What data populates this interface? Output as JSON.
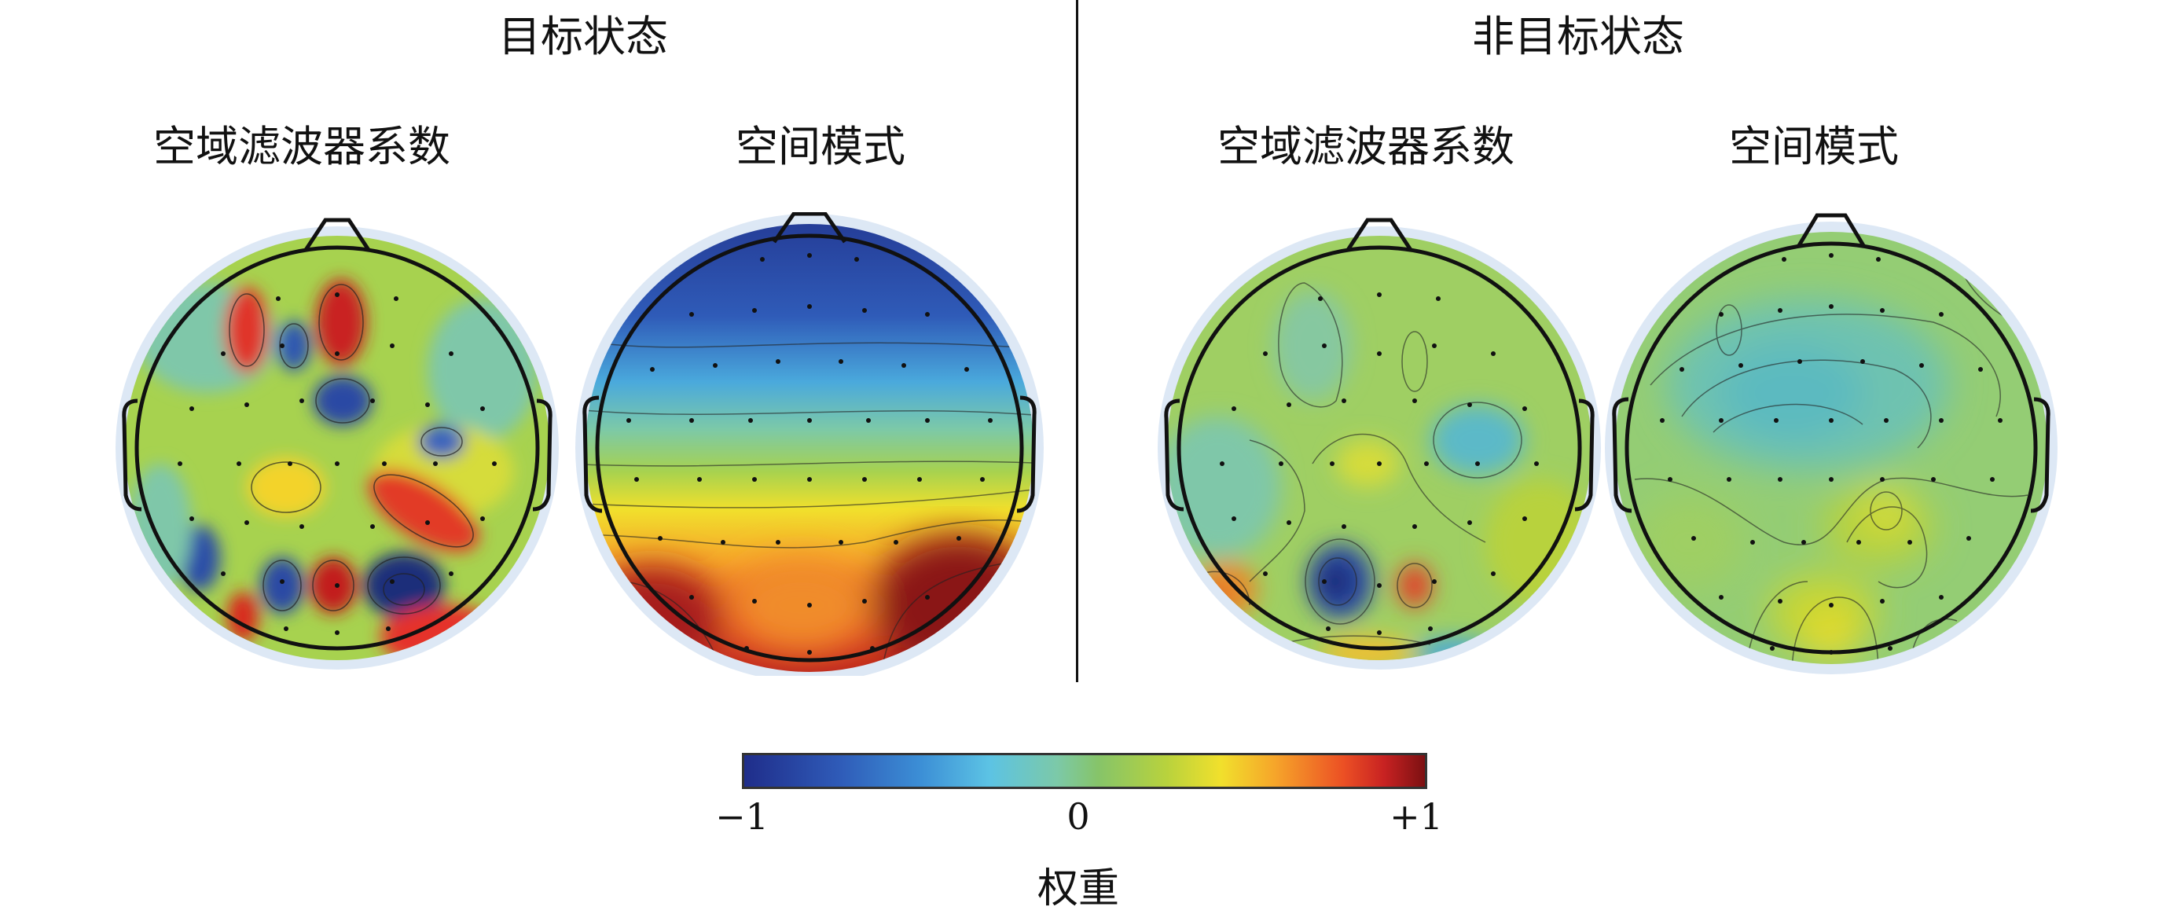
{
  "states": [
    {
      "title": "目标状态",
      "maps": [
        {
          "title": "空域滤波器系数"
        },
        {
          "title": "空间模式"
        }
      ]
    },
    {
      "title": "非目标状态",
      "maps": [
        {
          "title": "空域滤波器系数"
        },
        {
          "title": "空间模式"
        }
      ]
    }
  ],
  "colorbar": {
    "min_label": "−1",
    "mid_label": "0",
    "max_label": "+1",
    "label": "权重",
    "colors": [
      "#1f2d8a",
      "#3c8fd6",
      "#5cc3e4",
      "#86c469",
      "#f1e02c",
      "#f6a52a",
      "#ec5024",
      "#7c1012"
    ]
  }
}
